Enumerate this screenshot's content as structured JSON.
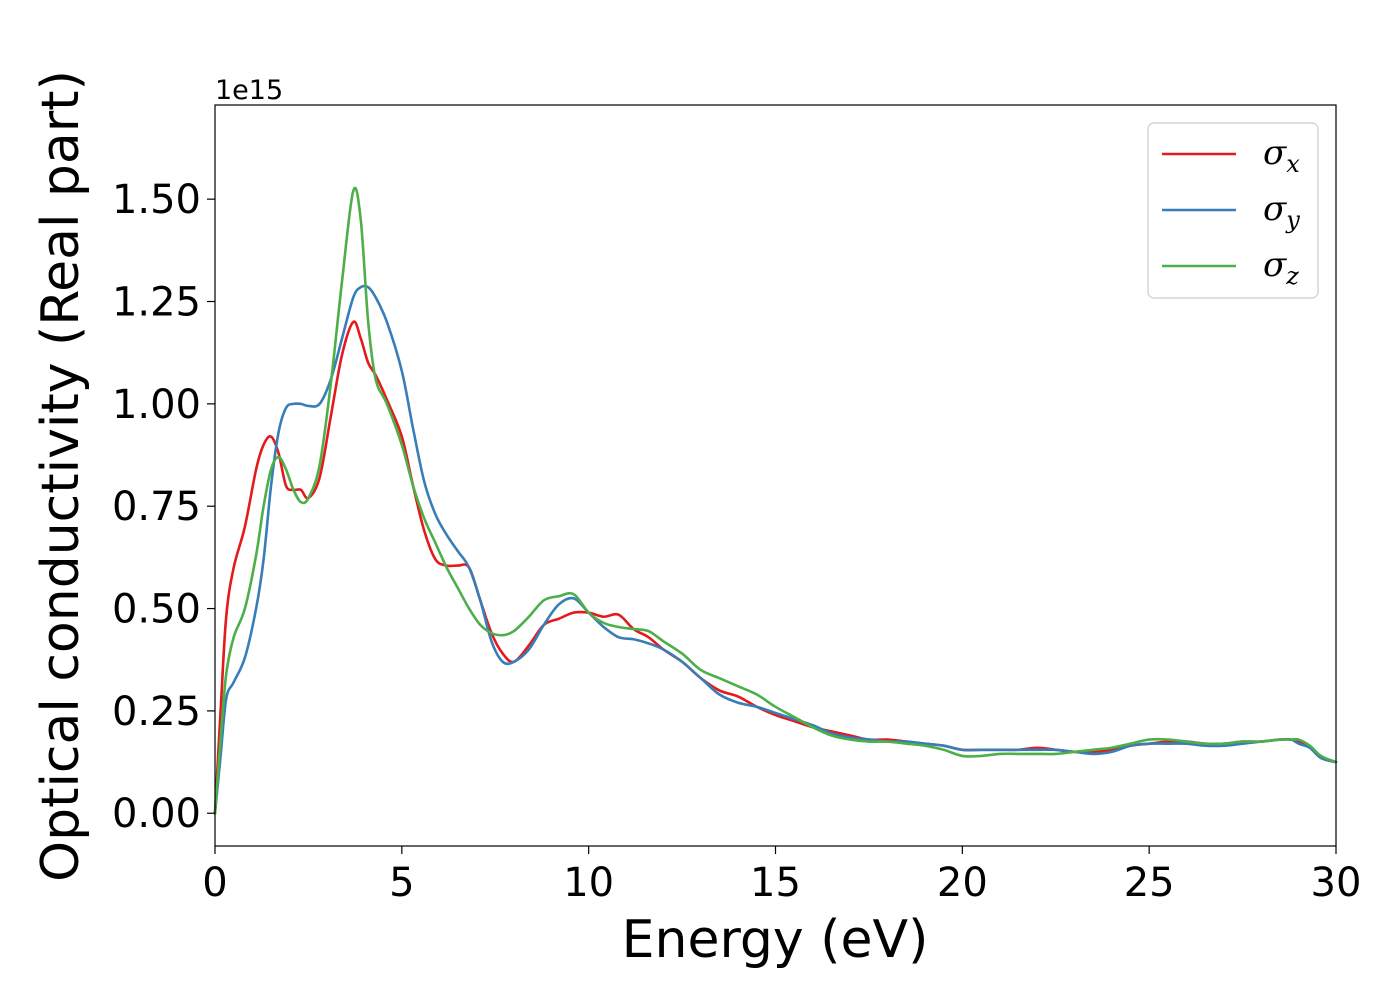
{
  "chart_data": {
    "type": "line",
    "title": "",
    "xlabel": "Energy (eV)",
    "ylabel": "Optical conductivity (Real part)",
    "y_offset_text": "1e15",
    "y_scale_factor": 1000000000000000.0,
    "xlim": [
      0,
      30
    ],
    "ylim": [
      -0.08,
      1.73
    ],
    "x_ticks": [
      0,
      5,
      10,
      15,
      20,
      25,
      30
    ],
    "x_tick_labels": [
      "0",
      "5",
      "10",
      "15",
      "20",
      "25",
      "30"
    ],
    "y_ticks": [
      0.0,
      0.25,
      0.5,
      0.75,
      1.0,
      1.25,
      1.5
    ],
    "y_tick_labels": [
      "0.00",
      "0.25",
      "0.50",
      "0.75",
      "1.00",
      "1.25",
      "1.50"
    ],
    "grid": false,
    "legend_position": "top-right",
    "series": [
      {
        "name": "σx",
        "symbol": "σ",
        "subscript": "x",
        "color": "#e41a1c",
        "x": [
          0,
          0.15,
          0.3,
          0.5,
          0.8,
          1.1,
          1.3,
          1.5,
          1.7,
          1.9,
          2.1,
          2.3,
          2.5,
          2.8,
          3.1,
          3.4,
          3.7,
          3.9,
          4.1,
          4.3,
          4.6,
          5.0,
          5.3,
          5.6,
          5.9,
          6.2,
          6.5,
          6.8,
          7.1,
          7.4,
          7.7,
          8.0,
          8.4,
          8.8,
          9.2,
          9.6,
          10.0,
          10.4,
          10.8,
          11.2,
          11.6,
          12.0,
          12.5,
          13.0,
          13.5,
          14.0,
          14.5,
          15.0,
          15.5,
          16.0,
          16.5,
          17.0,
          17.5,
          18.0,
          18.5,
          19.0,
          19.5,
          20.0,
          20.5,
          21.0,
          21.5,
          22.0,
          22.5,
          23.0,
          23.5,
          24.0,
          24.5,
          25.0,
          25.5,
          26.0,
          26.5,
          27.0,
          27.5,
          28.0,
          28.5,
          28.8,
          29.0,
          29.3,
          29.6,
          30.0
        ],
        "y": [
          0.0,
          0.25,
          0.48,
          0.6,
          0.7,
          0.84,
          0.9,
          0.92,
          0.88,
          0.8,
          0.79,
          0.79,
          0.77,
          0.82,
          0.97,
          1.12,
          1.2,
          1.16,
          1.1,
          1.07,
          1.01,
          0.92,
          0.8,
          0.69,
          0.62,
          0.605,
          0.605,
          0.6,
          0.52,
          0.44,
          0.39,
          0.37,
          0.41,
          0.46,
          0.475,
          0.49,
          0.49,
          0.48,
          0.485,
          0.45,
          0.43,
          0.4,
          0.37,
          0.33,
          0.3,
          0.285,
          0.26,
          0.24,
          0.225,
          0.21,
          0.2,
          0.19,
          0.18,
          0.18,
          0.175,
          0.17,
          0.165,
          0.155,
          0.155,
          0.155,
          0.155,
          0.16,
          0.155,
          0.15,
          0.15,
          0.155,
          0.165,
          0.17,
          0.175,
          0.175,
          0.17,
          0.17,
          0.175,
          0.175,
          0.18,
          0.18,
          0.175,
          0.16,
          0.135,
          0.125
        ]
      },
      {
        "name": "σy",
        "symbol": "σ",
        "subscript": "y",
        "color": "#377eb8",
        "x": [
          0,
          0.15,
          0.3,
          0.5,
          0.8,
          1.1,
          1.3,
          1.5,
          1.7,
          1.9,
          2.1,
          2.3,
          2.5,
          2.8,
          3.1,
          3.4,
          3.7,
          3.9,
          4.1,
          4.3,
          4.6,
          5.0,
          5.3,
          5.6,
          5.9,
          6.2,
          6.5,
          6.8,
          7.1,
          7.4,
          7.7,
          8.0,
          8.4,
          8.8,
          9.2,
          9.6,
          10.0,
          10.4,
          10.8,
          11.2,
          11.6,
          12.0,
          12.5,
          13.0,
          13.5,
          14.0,
          14.5,
          15.0,
          15.5,
          16.0,
          16.5,
          17.0,
          17.5,
          18.0,
          18.5,
          19.0,
          19.5,
          20.0,
          20.5,
          21.0,
          21.5,
          22.0,
          22.5,
          23.0,
          23.5,
          24.0,
          24.5,
          25.0,
          25.5,
          26.0,
          26.5,
          27.0,
          27.5,
          28.0,
          28.5,
          28.8,
          29.0,
          29.3,
          29.6,
          30.0
        ],
        "y": [
          0.0,
          0.14,
          0.28,
          0.32,
          0.38,
          0.5,
          0.62,
          0.8,
          0.93,
          0.99,
          1.0,
          1.0,
          0.995,
          1.0,
          1.06,
          1.16,
          1.26,
          1.285,
          1.285,
          1.26,
          1.2,
          1.08,
          0.94,
          0.81,
          0.73,
          0.68,
          0.64,
          0.6,
          0.52,
          0.42,
          0.37,
          0.37,
          0.4,
          0.46,
          0.51,
          0.525,
          0.49,
          0.455,
          0.43,
          0.425,
          0.415,
          0.4,
          0.37,
          0.33,
          0.29,
          0.27,
          0.26,
          0.245,
          0.23,
          0.215,
          0.195,
          0.185,
          0.18,
          0.175,
          0.175,
          0.17,
          0.165,
          0.155,
          0.155,
          0.155,
          0.155,
          0.155,
          0.155,
          0.15,
          0.145,
          0.15,
          0.165,
          0.17,
          0.17,
          0.17,
          0.165,
          0.165,
          0.17,
          0.175,
          0.18,
          0.18,
          0.17,
          0.16,
          0.135,
          0.125
        ]
      },
      {
        "name": "σz",
        "symbol": "σ",
        "subscript": "z",
        "color": "#4daf4a",
        "x": [
          0,
          0.15,
          0.3,
          0.5,
          0.8,
          1.1,
          1.3,
          1.5,
          1.7,
          1.9,
          2.1,
          2.3,
          2.5,
          2.8,
          3.1,
          3.4,
          3.7,
          3.9,
          4.1,
          4.3,
          4.6,
          5.0,
          5.3,
          5.6,
          5.9,
          6.2,
          6.5,
          6.8,
          7.1,
          7.4,
          7.7,
          8.0,
          8.4,
          8.8,
          9.2,
          9.6,
          10.0,
          10.4,
          10.8,
          11.2,
          11.6,
          12.0,
          12.5,
          13.0,
          13.5,
          14.0,
          14.5,
          15.0,
          15.5,
          16.0,
          16.5,
          17.0,
          17.5,
          18.0,
          18.5,
          19.0,
          19.5,
          20.0,
          20.5,
          21.0,
          21.5,
          22.0,
          22.5,
          23.0,
          23.5,
          24.0,
          24.5,
          25.0,
          25.5,
          26.0,
          26.5,
          27.0,
          27.5,
          28.0,
          28.5,
          28.8,
          29.0,
          29.3,
          29.6,
          30.0
        ],
        "y": [
          0.0,
          0.18,
          0.34,
          0.43,
          0.5,
          0.63,
          0.75,
          0.84,
          0.87,
          0.84,
          0.79,
          0.76,
          0.77,
          0.85,
          1.05,
          1.3,
          1.52,
          1.45,
          1.2,
          1.06,
          1.0,
          0.9,
          0.8,
          0.72,
          0.66,
          0.6,
          0.55,
          0.5,
          0.46,
          0.44,
          0.435,
          0.445,
          0.48,
          0.52,
          0.53,
          0.535,
          0.49,
          0.465,
          0.455,
          0.45,
          0.445,
          0.42,
          0.39,
          0.35,
          0.33,
          0.31,
          0.29,
          0.26,
          0.235,
          0.21,
          0.19,
          0.18,
          0.175,
          0.175,
          0.17,
          0.165,
          0.155,
          0.14,
          0.14,
          0.145,
          0.145,
          0.145,
          0.145,
          0.15,
          0.155,
          0.16,
          0.17,
          0.18,
          0.18,
          0.175,
          0.17,
          0.17,
          0.175,
          0.175,
          0.18,
          0.18,
          0.18,
          0.165,
          0.14,
          0.125
        ]
      }
    ]
  }
}
